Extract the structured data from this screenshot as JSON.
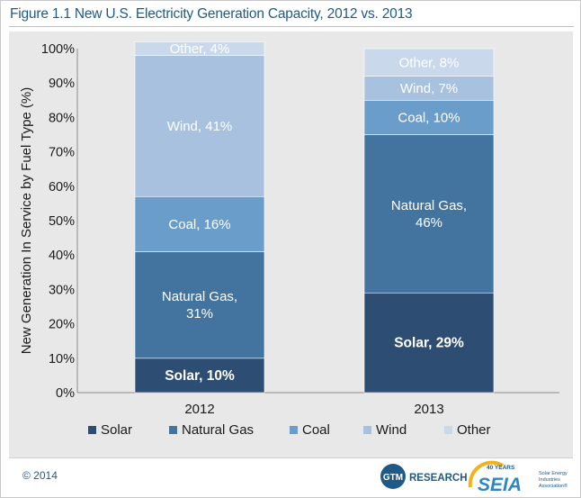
{
  "figure_title": "Figure 1.1  New U.S. Electricity Generation Capacity, 2012 vs. 2013",
  "copyright": "© 2014",
  "logos": {
    "gtm_badge": "GTM",
    "gtm_word": "RESEARCH",
    "seia_word": "SEIA",
    "seia_years": "40 YEARS",
    "seia_tagline_1": "Solar Energy",
    "seia_tagline_2": "Industries",
    "seia_tagline_3": "Association®"
  },
  "colors": {
    "Solar": "#2e4d73",
    "Natural Gas": "#43739f",
    "Coal": "#6b9dcb",
    "Wind": "#a7c1df",
    "Other": "#c9d9eb"
  },
  "chart_data": {
    "type": "bar",
    "stacked": true,
    "percent": true,
    "categories": [
      "2012",
      "2013"
    ],
    "ylabel": "New Generation In Service by Fuel Type (%)",
    "xlabel": "",
    "ylim": [
      0,
      100
    ],
    "yticks": [
      0,
      10,
      20,
      30,
      40,
      50,
      60,
      70,
      80,
      90,
      100
    ],
    "ytick_labels": [
      "0%",
      "10%",
      "20%",
      "30%",
      "40%",
      "50%",
      "60%",
      "70%",
      "80%",
      "90%",
      "100%"
    ],
    "grid": false,
    "legend_position": "bottom",
    "series": [
      {
        "name": "Solar",
        "values": [
          10,
          29
        ],
        "labels": [
          "Solar, 10%",
          "Solar, 29%"
        ]
      },
      {
        "name": "Natural Gas",
        "values": [
          31,
          46
        ],
        "labels": [
          "Natural Gas,|31%",
          "Natural Gas,|46%"
        ]
      },
      {
        "name": "Coal",
        "values": [
          16,
          10
        ],
        "labels": [
          "Coal, 16%",
          "Coal, 10%"
        ]
      },
      {
        "name": "Wind",
        "values": [
          41,
          7
        ],
        "labels": [
          "Wind, 41%",
          "Wind, 7%"
        ]
      },
      {
        "name": "Other",
        "values": [
          4,
          8
        ],
        "labels": [
          "Other, 4%",
          "Other, 8%"
        ]
      }
    ]
  }
}
